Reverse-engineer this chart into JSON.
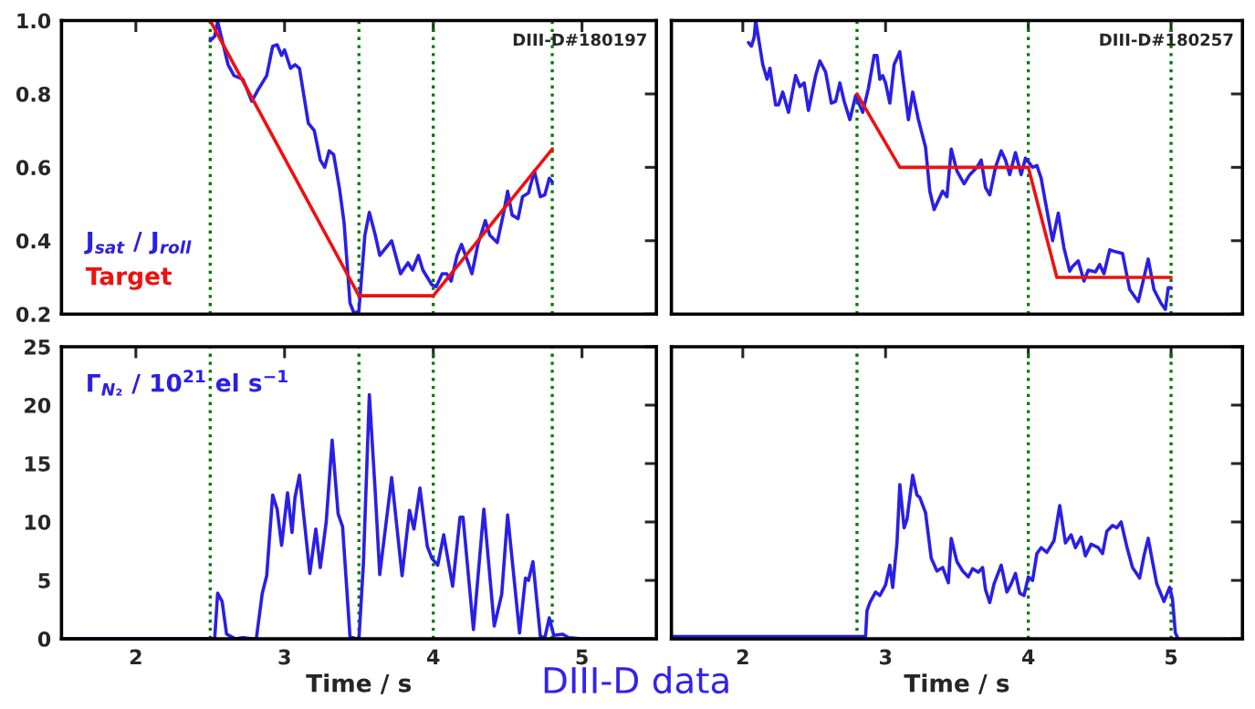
{
  "chart_data": [
    {
      "type": "line",
      "annotations": [
        "DIII-D#180197"
      ],
      "xlim": [
        1.5,
        5.5
      ],
      "ylim": [
        0.2,
        1.0
      ],
      "yticks": [
        {
          "value": 0.2,
          "label": "0.2"
        },
        {
          "value": 0.4,
          "label": "0.4"
        },
        {
          "value": 0.6,
          "label": "0.6"
        },
        {
          "value": 0.8,
          "label": "0.8"
        },
        {
          "value": 1.0,
          "label": "1.0"
        }
      ],
      "xticks": [
        {
          "value": 2,
          "label": null
        },
        {
          "value": 3,
          "label": null
        },
        {
          "value": 4,
          "label": null
        },
        {
          "value": 5,
          "label": null
        }
      ],
      "tick_labels": "y",
      "legend": "bottom left",
      "line_style": "solid",
      "ref_lines": [
        {
          "axis": "x",
          "value": 2.5,
          "color": "#007a00",
          "line_style": "dotted"
        },
        {
          "axis": "x",
          "value": 3.5,
          "color": "#007a00",
          "line_style": "dotted"
        },
        {
          "axis": "x",
          "value": 4.0,
          "color": "#007a00",
          "line_style": "dotted"
        },
        {
          "axis": "x",
          "value": 4.8,
          "color": "#007a00",
          "line_style": "dotted"
        }
      ],
      "series": [
        {
          "name": "J$_{sat}$ / J$_{roll}$",
          "color": "#2a1fe6",
          "x": [
            2.5,
            2.53,
            2.55,
            2.62,
            2.66,
            2.72,
            2.78,
            2.82,
            2.88,
            2.92,
            2.95,
            2.98,
            3.0,
            3.04,
            3.07,
            3.1,
            3.16,
            3.2,
            3.24,
            3.27,
            3.3,
            3.33,
            3.37,
            3.4,
            3.44,
            3.47,
            3.5,
            3.54,
            3.57,
            3.61,
            3.64,
            3.68,
            3.72,
            3.78,
            3.83,
            3.86,
            3.9,
            3.93,
            3.99,
            4.02,
            4.06,
            4.09,
            4.12,
            4.16,
            4.19,
            4.23,
            4.26,
            4.3,
            4.35,
            4.38,
            4.43,
            4.47,
            4.5,
            4.53,
            4.57,
            4.6,
            4.64,
            4.68,
            4.72,
            4.75,
            4.78,
            4.8
          ],
          "values": [
            0.945,
            0.957,
            0.997,
            0.88,
            0.85,
            0.84,
            0.78,
            0.81,
            0.85,
            0.93,
            0.934,
            0.905,
            0.92,
            0.87,
            0.88,
            0.87,
            0.72,
            0.7,
            0.62,
            0.6,
            0.645,
            0.635,
            0.54,
            0.45,
            0.23,
            0.2,
            0.21,
            0.415,
            0.477,
            0.415,
            0.36,
            0.38,
            0.4,
            0.31,
            0.34,
            0.32,
            0.36,
            0.32,
            0.28,
            0.275,
            0.31,
            0.31,
            0.29,
            0.36,
            0.39,
            0.345,
            0.31,
            0.39,
            0.455,
            0.415,
            0.395,
            0.47,
            0.535,
            0.47,
            0.46,
            0.52,
            0.53,
            0.59,
            0.52,
            0.525,
            0.57,
            0.56
          ]
        },
        {
          "name": "Target",
          "color": "#ee1111",
          "x": [
            2.5,
            3.5,
            4.0,
            4.8
          ],
          "values": [
            1.0,
            0.25,
            0.25,
            0.65
          ]
        }
      ]
    },
    {
      "type": "line",
      "annotations": [
        "DIII-D#180257"
      ],
      "xlim": [
        1.5,
        5.5
      ],
      "ylim": [
        0.2,
        1.0
      ],
      "yticks": [
        {
          "value": 0.2,
          "label": null
        },
        {
          "value": 0.4,
          "label": null
        },
        {
          "value": 0.6,
          "label": null
        },
        {
          "value": 0.8,
          "label": null
        },
        {
          "value": 1.0,
          "label": null
        }
      ],
      "xticks": [
        {
          "value": 2,
          "label": null
        },
        {
          "value": 3,
          "label": null
        },
        {
          "value": 4,
          "label": null
        },
        {
          "value": 5,
          "label": null
        }
      ],
      "tick_labels": false,
      "line_style": "solid",
      "ref_lines": [
        {
          "axis": "x",
          "value": 2.8,
          "color": "#007a00",
          "line_style": "dotted"
        },
        {
          "axis": "x",
          "value": 4.0,
          "color": "#007a00",
          "line_style": "dotted"
        },
        {
          "axis": "x",
          "value": 5.0,
          "color": "#007a00",
          "line_style": "dotted"
        }
      ],
      "series": [
        {
          "color": "#2a1fe6",
          "x": [
            2.04,
            2.06,
            2.08,
            2.09,
            2.14,
            2.17,
            2.19,
            2.23,
            2.25,
            2.28,
            2.32,
            2.37,
            2.4,
            2.43,
            2.46,
            2.51,
            2.54,
            2.58,
            2.62,
            2.65,
            2.68,
            2.71,
            2.75,
            2.79,
            2.84,
            2.88,
            2.92,
            2.94,
            2.96,
            2.98,
            3.0,
            3.03,
            3.06,
            3.1,
            3.12,
            3.16,
            3.19,
            3.23,
            3.28,
            3.31,
            3.34,
            3.4,
            3.43,
            3.46,
            3.5,
            3.55,
            3.59,
            3.64,
            3.67,
            3.7,
            3.73,
            3.77,
            3.81,
            3.84,
            3.87,
            3.91,
            3.95,
            3.98,
            4.03,
            4.06,
            4.09,
            4.12,
            4.17,
            4.21,
            4.25,
            4.29,
            4.31,
            4.35,
            4.39,
            4.42,
            4.47,
            4.5,
            4.53,
            4.57,
            4.61,
            4.66,
            4.71,
            4.77,
            4.8,
            4.84,
            4.88,
            4.93,
            4.96,
            4.98,
            5.0
          ],
          "values": [
            0.94,
            0.93,
            0.955,
            1.0,
            0.88,
            0.84,
            0.87,
            0.77,
            0.77,
            0.805,
            0.75,
            0.85,
            0.82,
            0.83,
            0.755,
            0.85,
            0.89,
            0.86,
            0.775,
            0.78,
            0.83,
            0.78,
            0.73,
            0.795,
            0.75,
            0.815,
            0.905,
            0.905,
            0.84,
            0.85,
            0.83,
            0.775,
            0.88,
            0.915,
            0.85,
            0.73,
            0.805,
            0.73,
            0.655,
            0.535,
            0.485,
            0.535,
            0.52,
            0.65,
            0.59,
            0.555,
            0.58,
            0.6,
            0.62,
            0.545,
            0.525,
            0.6,
            0.645,
            0.62,
            0.58,
            0.64,
            0.58,
            0.625,
            0.6,
            0.605,
            0.57,
            0.505,
            0.4,
            0.475,
            0.38,
            0.317,
            0.33,
            0.345,
            0.29,
            0.32,
            0.315,
            0.335,
            0.31,
            0.375,
            0.37,
            0.365,
            0.267,
            0.234,
            0.283,
            0.35,
            0.267,
            0.229,
            0.213,
            0.272,
            0.272
          ]
        },
        {
          "color": "#ee1111",
          "x": [
            2.8,
            3.1,
            4.0,
            4.2,
            5.0
          ],
          "values": [
            0.8,
            0.6,
            0.6,
            0.3,
            0.3
          ]
        }
      ]
    },
    {
      "type": "line",
      "xlabel": "Time / s",
      "annotations": [
        "DIII-D data"
      ],
      "xlim": [
        1.5,
        5.5
      ],
      "ylim": [
        0,
        25
      ],
      "xticks": [
        2,
        3,
        4,
        5
      ],
      "yticks": [
        0,
        5,
        10,
        15,
        20,
        25
      ],
      "legend": "top left",
      "line_style": "solid",
      "ref_lines": [
        {
          "axis": "x",
          "value": 2.5,
          "color": "#007a00",
          "line_style": "dotted"
        },
        {
          "axis": "x",
          "value": 3.5,
          "color": "#007a00",
          "line_style": "dotted"
        },
        {
          "axis": "x",
          "value": 4.0,
          "color": "#007a00",
          "line_style": "dotted"
        },
        {
          "axis": "x",
          "value": 4.8,
          "color": "#007a00",
          "line_style": "dotted"
        }
      ],
      "series": [
        {
          "name": "Γ$_{N₂}$ / 10$^{21}$ el s$^{−1}$",
          "color": "#2a1fe6",
          "x": [
            1.51,
            2.5,
            2.53,
            2.55,
            2.58,
            2.61,
            2.67,
            2.72,
            2.78,
            2.81,
            2.85,
            2.88,
            2.9,
            2.92,
            2.95,
            2.98,
            3.02,
            3.05,
            3.07,
            3.1,
            3.13,
            3.17,
            3.21,
            3.24,
            3.28,
            3.32,
            3.36,
            3.39,
            3.44,
            3.48,
            3.5,
            3.53,
            3.57,
            3.61,
            3.64,
            3.72,
            3.79,
            3.84,
            3.87,
            3.91,
            3.96,
            3.99,
            4.03,
            4.07,
            4.13,
            4.18,
            4.2,
            4.27,
            4.34,
            4.41,
            4.46,
            4.5,
            4.58,
            4.62,
            4.64,
            4.67,
            4.72,
            4.75,
            4.78,
            4.81,
            4.87,
            4.91,
            5.0,
            5.47
          ],
          "values": [
            0,
            0,
            0,
            3.9,
            3.2,
            0.4,
            0,
            0.1,
            0,
            0,
            3.9,
            5.4,
            8.9,
            12.3,
            11.1,
            8.0,
            12.5,
            9.1,
            12.1,
            14.0,
            10.4,
            5.6,
            9.4,
            6.1,
            10.0,
            17.0,
            10.7,
            9.6,
            0.2,
            0,
            0,
            6.4,
            20.9,
            12.5,
            5.5,
            13.8,
            5.4,
            11.0,
            9.4,
            12.9,
            7.9,
            6.9,
            6.3,
            8.9,
            4.5,
            10.4,
            10.4,
            0.8,
            11.1,
            1.1,
            3.8,
            10.6,
            0.5,
            5.2,
            5.0,
            6.6,
            0.2,
            0.1,
            1.8,
            0.3,
            0.4,
            0.1,
            0,
            0
          ]
        }
      ]
    },
    {
      "type": "line",
      "xlabel": "Time / s",
      "xlim": [
        1.5,
        5.5
      ],
      "ylim": [
        0,
        25
      ],
      "xticks": [
        2,
        3,
        4,
        5
      ],
      "yticks": [
        {
          "value": 0,
          "label": null
        },
        {
          "value": 5,
          "label": null
        },
        {
          "value": 10,
          "label": null
        },
        {
          "value": 15,
          "label": null
        },
        {
          "value": 20,
          "label": null
        },
        {
          "value": 25,
          "label": null
        }
      ],
      "tick_labels": "x",
      "line_style": "solid",
      "ref_lines": [
        {
          "axis": "x",
          "value": 2.8,
          "color": "#007a00",
          "line_style": "dotted"
        },
        {
          "axis": "x",
          "value": 4.0,
          "color": "#007a00",
          "line_style": "dotted"
        },
        {
          "axis": "x",
          "value": 5.0,
          "color": "#007a00",
          "line_style": "dotted"
        }
      ],
      "series": [
        {
          "color": "#2a1fe6",
          "x": [
            1.51,
            2.79,
            2.86,
            2.87,
            2.89,
            2.93,
            2.96,
            3.0,
            3.03,
            3.05,
            3.08,
            3.1,
            3.13,
            3.15,
            3.19,
            3.22,
            3.24,
            3.28,
            3.32,
            3.36,
            3.4,
            3.44,
            3.46,
            3.5,
            3.54,
            3.58,
            3.61,
            3.65,
            3.68,
            3.7,
            3.73,
            3.76,
            3.81,
            3.85,
            3.88,
            3.91,
            3.94,
            3.97,
            4.0,
            4.03,
            4.06,
            4.09,
            4.13,
            4.18,
            4.22,
            4.26,
            4.3,
            4.33,
            4.37,
            4.4,
            4.44,
            4.49,
            4.52,
            4.55,
            4.59,
            4.62,
            4.65,
            4.69,
            4.73,
            4.78,
            4.81,
            4.84,
            4.87,
            4.9,
            4.95,
            4.99,
            5.01,
            5.03,
            5.05
          ],
          "values": [
            0.2,
            0.2,
            0.2,
            2.4,
            3.1,
            4.0,
            3.7,
            4.6,
            6.3,
            4.4,
            8.2,
            13.2,
            9.5,
            10.2,
            14.0,
            12.3,
            12.1,
            10.8,
            6.9,
            5.8,
            6.1,
            4.8,
            8.6,
            6.6,
            5.8,
            5.3,
            6.0,
            5.7,
            6.1,
            4.2,
            3.1,
            4.7,
            6.3,
            4.0,
            4.7,
            5.6,
            3.9,
            3.7,
            5.3,
            5.0,
            7.3,
            7.8,
            7.4,
            8.4,
            11.4,
            8.2,
            8.9,
            7.8,
            8.7,
            7.1,
            8.1,
            7.8,
            7.3,
            9.2,
            9.7,
            9.5,
            10.0,
            7.9,
            6.1,
            5.2,
            7.1,
            8.6,
            6.6,
            4.7,
            3.2,
            4.4,
            3.4,
            0.5,
            0
          ]
        }
      ]
    }
  ]
}
